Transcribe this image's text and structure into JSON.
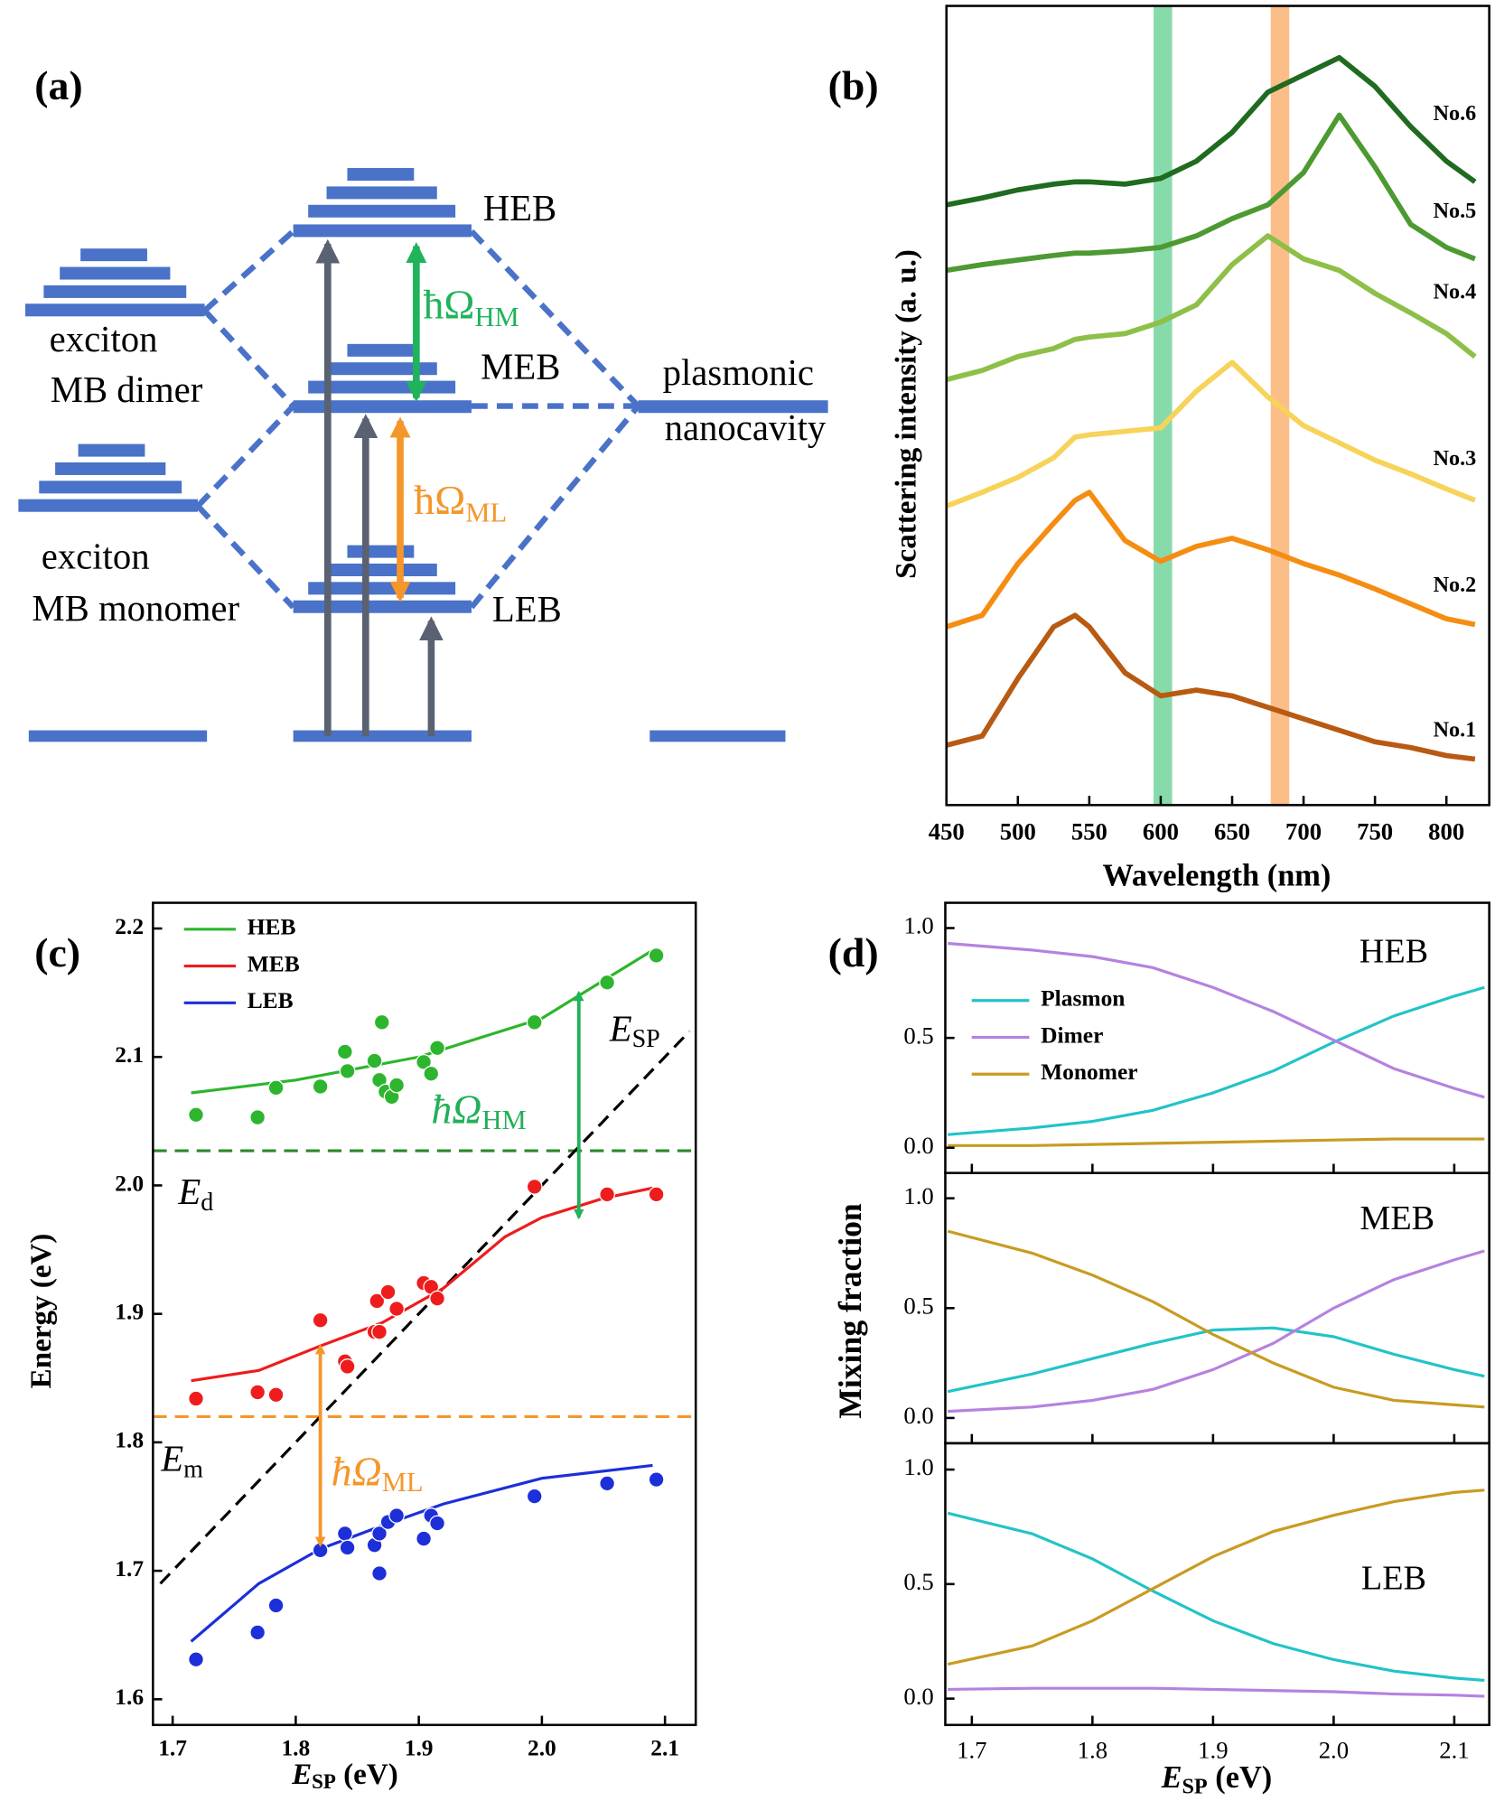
{
  "diagram": {
    "panel_label": "(a)",
    "heb": "HEB",
    "meb": "MEB",
    "leb": "LEB",
    "dimer": [
      "exciton",
      "MB dimer"
    ],
    "monomer": [
      "exciton",
      "MB monomer"
    ],
    "cavity": [
      "plasmonic",
      "nanocavity"
    ],
    "hm": {
      "main": "ħΩ",
      "sub": "HM"
    },
    "ml": {
      "main": "ħΩ",
      "sub": "ML"
    }
  },
  "chart_data": [
    {
      "type": "line",
      "panel_label": "(b)",
      "xlabel": "Wavelength (nm)",
      "ylabel": "Scattering intensity (a. u.)",
      "x": [
        450,
        475,
        500,
        525,
        540,
        550,
        575,
        600,
        625,
        650,
        675,
        700,
        725,
        750,
        775,
        800,
        820
      ],
      "xlim": [
        450,
        830
      ],
      "ylim": [
        0,
        695
      ],
      "xticks": [
        450,
        500,
        550,
        600,
        650,
        700,
        750,
        800
      ],
      "series": [
        {
          "name": "No.1",
          "color": "#b85a12",
          "values": [
            52,
            60,
            110,
            155,
            165,
            155,
            115,
            95,
            100,
            95,
            85,
            75,
            65,
            55,
            50,
            43,
            40
          ]
        },
        {
          "name": "No.2",
          "color": "#f58d12",
          "values": [
            155,
            165,
            210,
            245,
            265,
            272,
            230,
            212,
            225,
            232,
            222,
            210,
            200,
            188,
            175,
            162,
            157
          ]
        },
        {
          "name": "No.3",
          "color": "#f7d35a",
          "values": [
            260,
            272,
            285,
            302,
            320,
            322,
            325,
            328,
            360,
            385,
            355,
            330,
            315,
            300,
            288,
            275,
            265
          ]
        },
        {
          "name": "No.4",
          "color": "#8ebf48",
          "values": [
            370,
            378,
            390,
            397,
            405,
            407,
            410,
            420,
            435,
            470,
            495,
            475,
            465,
            445,
            428,
            410,
            390
          ]
        },
        {
          "name": "No.5",
          "color": "#4d9a32",
          "values": [
            465,
            470,
            474,
            478,
            480,
            480,
            482,
            485,
            495,
            510,
            522,
            550,
            600,
            555,
            505,
            485,
            475
          ]
        },
        {
          "name": "No.6",
          "color": "#1f6b20",
          "values": [
            522,
            528,
            535,
            540,
            542,
            542,
            540,
            545,
            560,
            585,
            620,
            635,
            650,
            625,
            590,
            560,
            542
          ]
        }
      ],
      "bands": [
        {
          "x": [
            595,
            608
          ],
          "color": "#5fcf8f"
        },
        {
          "x": [
            677,
            690
          ],
          "color": "#f9a862"
        }
      ]
    },
    {
      "type": "scatter",
      "panel_label": "(c)",
      "xlabel": {
        "main": "E",
        "sub": "SP",
        "unit": " (eV)"
      },
      "ylabel": "Energy (eV)",
      "xlim": [
        1.684,
        2.125
      ],
      "ylim": [
        1.58,
        2.22
      ],
      "xticks": [
        1.7,
        1.8,
        1.9,
        {
          "value": 2,
          "label": "2.0"
        },
        2.1
      ],
      "yticks": [
        1.6,
        1.7,
        1.8,
        1.9,
        {
          "value": 2,
          "label": "2.0"
        },
        2.1,
        2.2
      ],
      "series": [
        {
          "name": "HEB",
          "color": "#2db52d",
          "x": [
            1.719,
            1.769,
            1.784,
            1.82,
            1.84,
            1.842,
            1.864,
            1.868,
            1.87,
            1.873,
            1.878,
            1.882,
            1.904,
            1.91,
            1.915,
            1.994,
            2.053,
            2.093
          ],
          "values": [
            2.055,
            2.053,
            2.076,
            2.077,
            2.104,
            2.089,
            2.097,
            2.082,
            2.127,
            2.073,
            2.069,
            2.078,
            2.096,
            2.087,
            2.107,
            2.127,
            2.158,
            2.179
          ],
          "fit_x": [
            1.715,
            1.8,
            1.9,
            2.0,
            2.09
          ],
          "fit_values": [
            2.072,
            2.082,
            2.1,
            2.13,
            2.183
          ]
        },
        {
          "name": "MEB",
          "color": "#ee1c1c",
          "x": [
            1.719,
            1.769,
            1.784,
            1.82,
            1.84,
            1.842,
            1.864,
            1.866,
            1.868,
            1.875,
            1.882,
            1.904,
            1.91,
            1.915,
            1.994,
            2.053,
            2.093
          ],
          "values": [
            1.834,
            1.839,
            1.837,
            1.895,
            1.863,
            1.859,
            1.886,
            1.91,
            1.886,
            1.917,
            1.904,
            1.924,
            1.921,
            1.912,
            1.999,
            1.993,
            1.993
          ],
          "fit_x": [
            1.715,
            1.77,
            1.82,
            1.87,
            1.92,
            1.97,
            2.0,
            2.05,
            2.09
          ],
          "fit_values": [
            1.848,
            1.856,
            1.875,
            1.893,
            1.92,
            1.96,
            1.975,
            1.99,
            1.998
          ]
        },
        {
          "name": "LEB",
          "color": "#1c2fd8",
          "x": [
            1.719,
            1.769,
            1.784,
            1.82,
            1.84,
            1.842,
            1.864,
            1.868,
            1.868,
            1.875,
            1.882,
            1.904,
            1.91,
            1.915,
            1.994,
            2.053,
            2.093
          ],
          "values": [
            1.631,
            1.652,
            1.673,
            1.716,
            1.729,
            1.718,
            1.72,
            1.729,
            1.698,
            1.738,
            1.743,
            1.725,
            1.743,
            1.737,
            1.758,
            1.768,
            1.771
          ],
          "fit_x": [
            1.715,
            1.77,
            1.82,
            1.87,
            1.92,
            2.0,
            2.09
          ],
          "fit_values": [
            1.645,
            1.69,
            1.717,
            1.735,
            1.752,
            1.772,
            1.782
          ]
        }
      ],
      "reference_lines": [
        {
          "label": {
            "main": "E",
            "sub": "d"
          },
          "y": 2.027,
          "color": "#2a8a2a"
        },
        {
          "label": {
            "main": "E",
            "sub": "m"
          },
          "y": 1.82,
          "color": "#f5962a"
        }
      ],
      "diagonal": {
        "label": {
          "main": "E",
          "sub": "SP"
        },
        "x": [
          1.69,
          2.12
        ],
        "values": [
          1.69,
          2.12
        ],
        "color": "#000000"
      },
      "arrows": [
        {
          "label": {
            "main": "ħΩ",
            "sub": "HM"
          },
          "x": 2.03,
          "values": [
            2.15,
            1.975
          ],
          "color": "#22b05a"
        },
        {
          "label": {
            "main": "ħΩ",
            "sub": "ML"
          },
          "x": 1.82,
          "values": [
            1.875,
            1.72
          ],
          "color": "#f5962a"
        }
      ]
    },
    {
      "type": "line",
      "panel_label": "(d)",
      "xlabel": {
        "main": "E",
        "sub": "SP",
        "unit": " (eV)"
      },
      "ylabel": "Mixing fraction",
      "x": [
        1.68,
        1.75,
        1.8,
        1.85,
        1.9,
        1.95,
        2.0,
        2.05,
        2.1,
        2.125
      ],
      "xlim": [
        1.678,
        2.129
      ],
      "ylim": [
        -0.115,
        1.115
      ],
      "xticks": [
        1.7,
        1.8,
        1.9,
        {
          "value": 2,
          "label": "2.0"
        },
        2.1
      ],
      "yticks": [
        {
          "value": 0,
          "label": "0.0"
        },
        0.5,
        {
          "value": 1,
          "label": "1.0"
        }
      ],
      "panels": [
        {
          "title": "HEB",
          "title_color": "#2db52d",
          "series": [
            {
              "name": "Plasmon",
              "color": "#22c3c8",
              "values": [
                0.06,
                0.09,
                0.12,
                0.17,
                0.25,
                0.35,
                0.48,
                0.6,
                0.69,
                0.73
              ]
            },
            {
              "name": "Dimer",
              "color": "#b582e0",
              "values": [
                0.93,
                0.9,
                0.87,
                0.82,
                0.73,
                0.62,
                0.49,
                0.36,
                0.27,
                0.23
              ]
            },
            {
              "name": "Monomer",
              "color": "#c89b22",
              "values": [
                0.01,
                0.01,
                0.015,
                0.02,
                0.025,
                0.03,
                0.035,
                0.04,
                0.04,
                0.04
              ]
            }
          ]
        },
        {
          "title": "MEB",
          "title_color": "#ee1c1c",
          "series": [
            {
              "name": "Plasmon",
              "color": "#22c3c8",
              "values": [
                0.12,
                0.2,
                0.27,
                0.34,
                0.4,
                0.41,
                0.37,
                0.29,
                0.22,
                0.19
              ]
            },
            {
              "name": "Dimer",
              "color": "#b582e0",
              "values": [
                0.03,
                0.05,
                0.08,
                0.13,
                0.22,
                0.34,
                0.5,
                0.63,
                0.72,
                0.76
              ]
            },
            {
              "name": "Monomer",
              "color": "#c89b22",
              "values": [
                0.85,
                0.75,
                0.65,
                0.53,
                0.38,
                0.25,
                0.14,
                0.08,
                0.06,
                0.05
              ]
            }
          ]
        },
        {
          "title": "LEB",
          "title_color": "#1c2fd8",
          "series": [
            {
              "name": "Plasmon",
              "color": "#22c3c8",
              "values": [
                0.81,
                0.72,
                0.61,
                0.47,
                0.34,
                0.24,
                0.17,
                0.12,
                0.09,
                0.08
              ]
            },
            {
              "name": "Dimer",
              "color": "#b582e0",
              "values": [
                0.04,
                0.045,
                0.045,
                0.045,
                0.04,
                0.035,
                0.03,
                0.02,
                0.015,
                0.01
              ]
            },
            {
              "name": "Monomer",
              "color": "#c89b22",
              "values": [
                0.15,
                0.23,
                0.34,
                0.48,
                0.62,
                0.73,
                0.8,
                0.86,
                0.9,
                0.91
              ]
            }
          ]
        }
      ]
    }
  ]
}
